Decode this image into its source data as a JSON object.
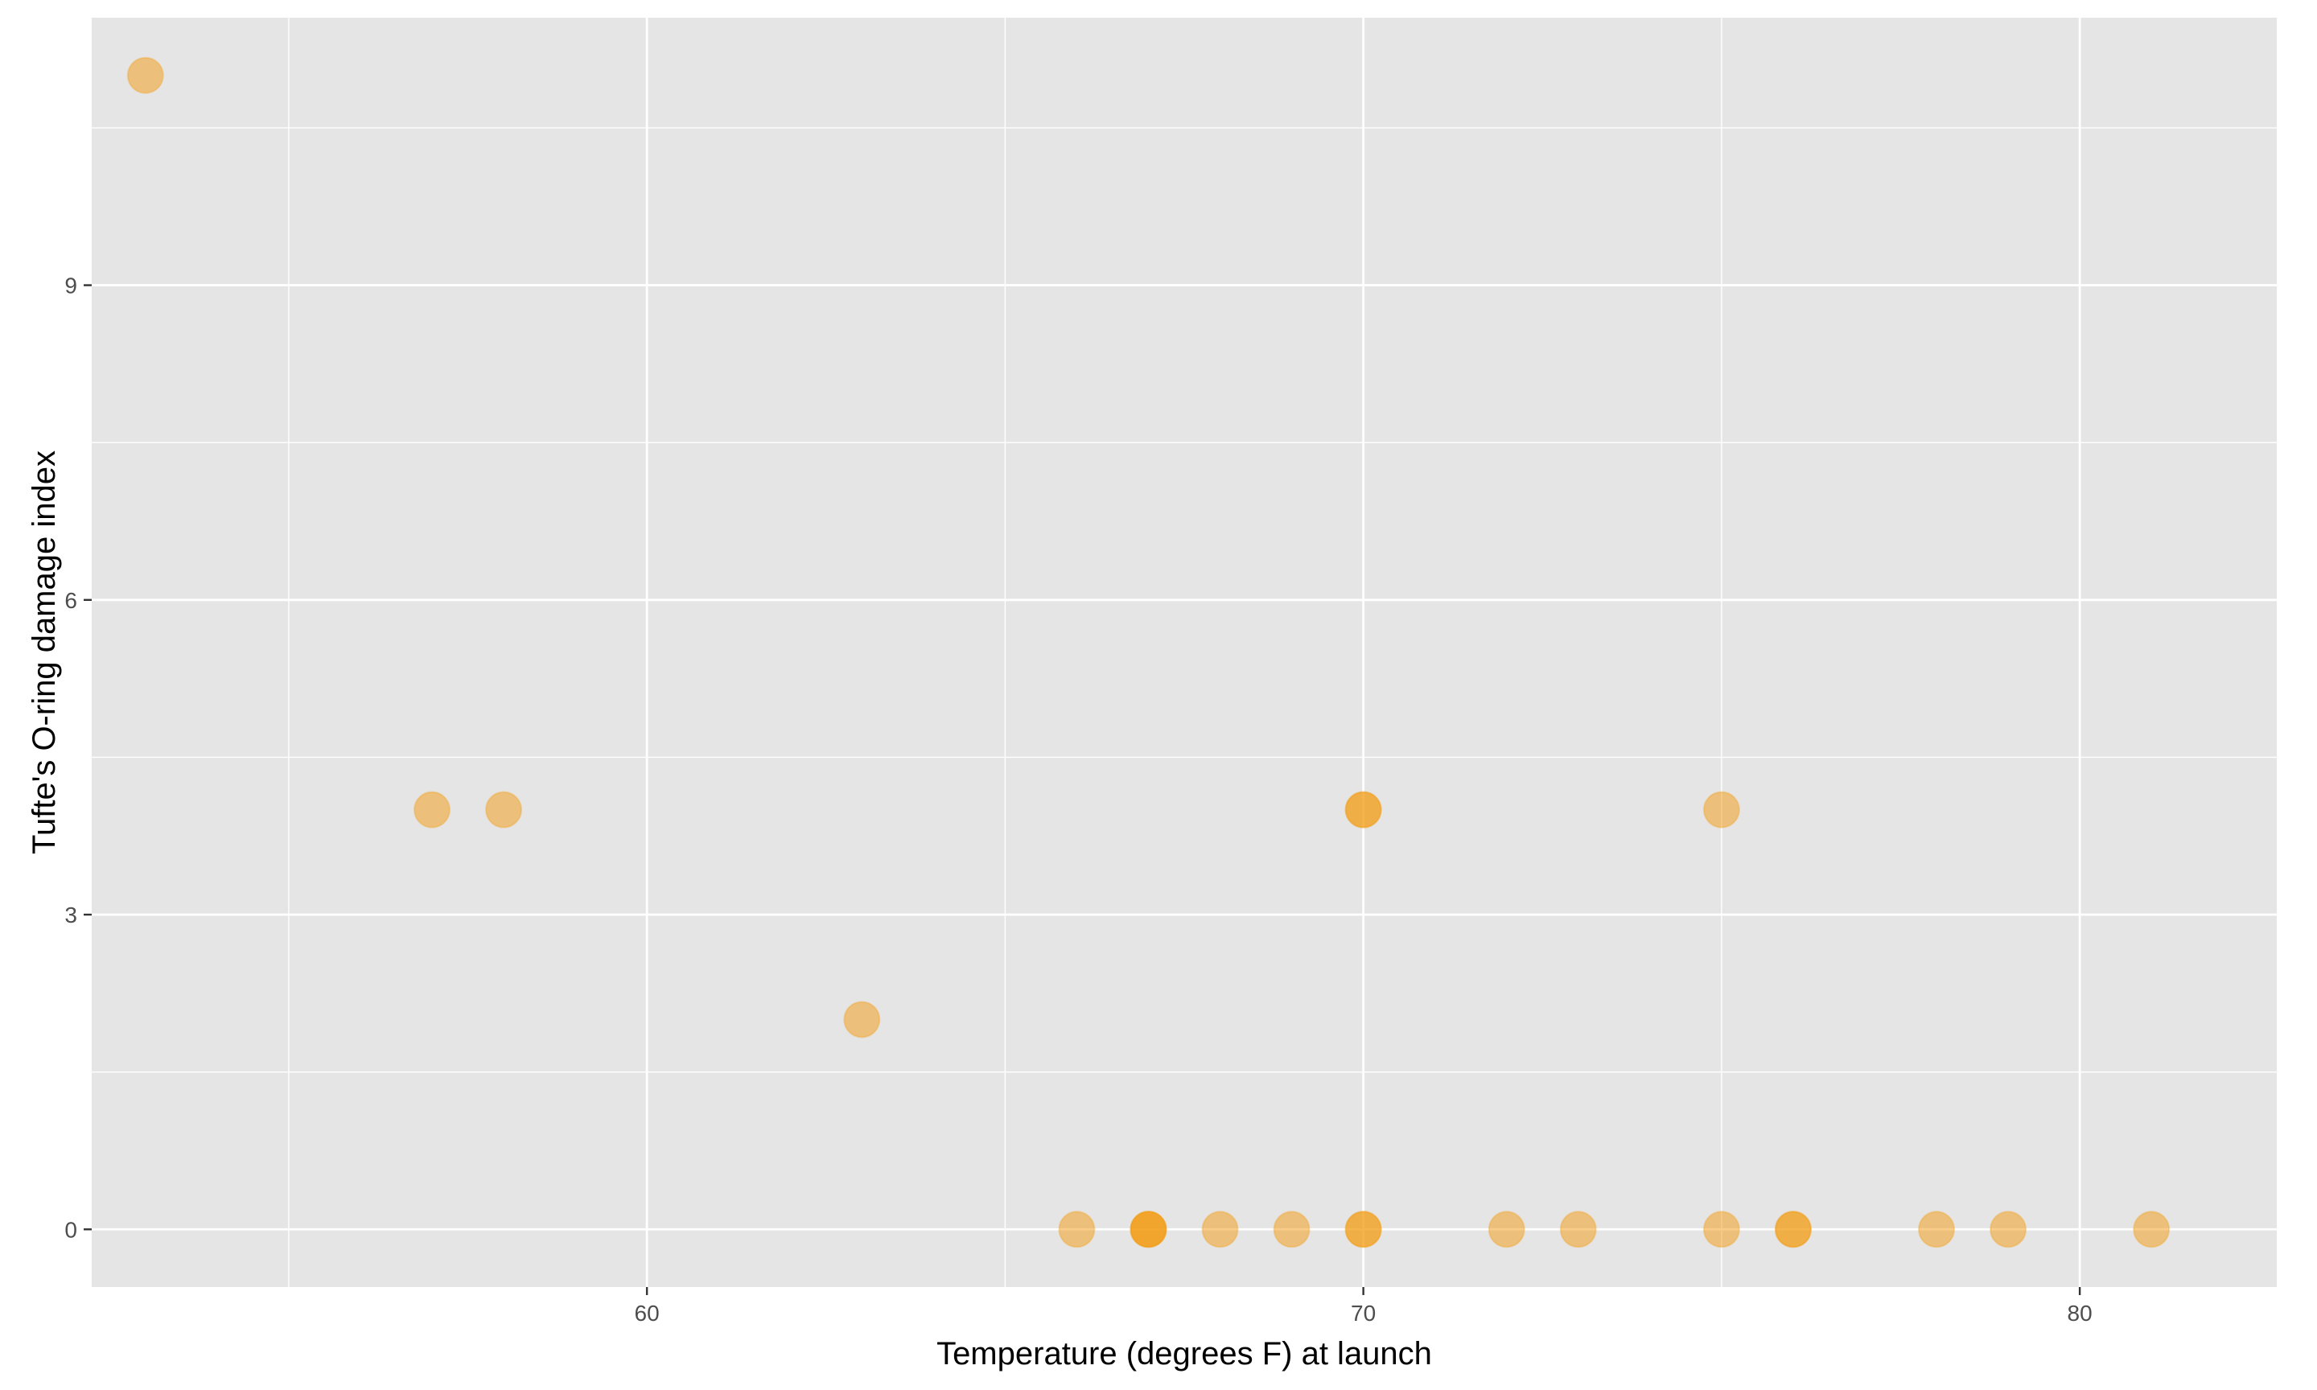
{
  "chart_data": {
    "type": "scatter",
    "title": "",
    "xlabel": "Temperature (degrees F) at launch",
    "ylabel": "Tufte's O-ring damage index",
    "xlim": [
      52.25,
      82.75
    ],
    "ylim": [
      -0.55,
      11.55
    ],
    "x_major_ticks": [
      60,
      70,
      80
    ],
    "x_minor_ticks": [
      55,
      65,
      75
    ],
    "y_major_ticks": [
      0,
      3,
      6,
      9
    ],
    "y_minor_ticks": [
      1.5,
      4.5,
      7.5,
      10.5
    ],
    "grid": true,
    "point_color": "#F39C12",
    "point_alpha": 0.5,
    "panel_background": "#E5E5E5",
    "grid_color": "#FFFFFF",
    "points": [
      {
        "x": 53,
        "y": 11
      },
      {
        "x": 57,
        "y": 4
      },
      {
        "x": 58,
        "y": 4
      },
      {
        "x": 63,
        "y": 2
      },
      {
        "x": 66,
        "y": 0
      },
      {
        "x": 67,
        "y": 0
      },
      {
        "x": 67,
        "y": 0
      },
      {
        "x": 67,
        "y": 0
      },
      {
        "x": 68,
        "y": 0
      },
      {
        "x": 69,
        "y": 0
      },
      {
        "x": 70,
        "y": 4
      },
      {
        "x": 70,
        "y": 4
      },
      {
        "x": 70,
        "y": 0
      },
      {
        "x": 70,
        "y": 0
      },
      {
        "x": 72,
        "y": 0
      },
      {
        "x": 73,
        "y": 0
      },
      {
        "x": 75,
        "y": 0
      },
      {
        "x": 75,
        "y": 4
      },
      {
        "x": 76,
        "y": 0
      },
      {
        "x": 76,
        "y": 0
      },
      {
        "x": 78,
        "y": 0
      },
      {
        "x": 79,
        "y": 0
      },
      {
        "x": 81,
        "y": 0
      }
    ]
  }
}
